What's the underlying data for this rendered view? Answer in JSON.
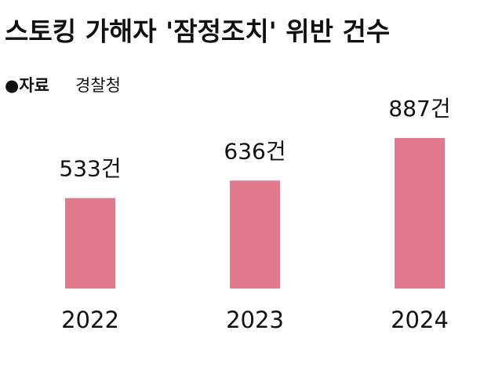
{
  "chart_data": {
    "type": "bar",
    "title": "스토킹 가해자 '잠정조치' 위반 건수",
    "source_label": "●자료",
    "source": "경찰청",
    "categories": [
      "2022",
      "2023",
      "2024"
    ],
    "values": [
      533,
      636,
      887
    ],
    "value_labels": [
      "533건",
      "636건",
      "887건"
    ],
    "color": "#e07a8c",
    "ylim": [
      0,
      1000
    ]
  }
}
